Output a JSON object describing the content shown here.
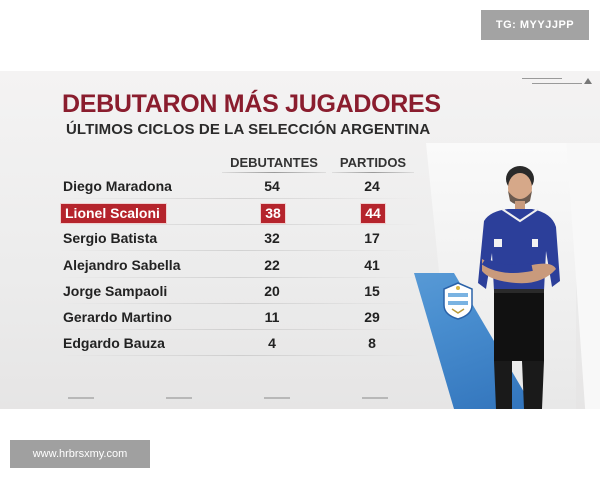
{
  "watermarks": {
    "top_right": "TG: MYYJJPP",
    "bottom_left": "www.hrbrsxmy.com"
  },
  "graphic": {
    "title": "DEBUTARON MÁS JUGADORES",
    "subtitle": "ÚLTIMOS CICLOS DE LA SELECCIÓN ARGENTINA",
    "columns": [
      "DEBUTANTES",
      "PARTIDOS"
    ],
    "highlight_color": "#b5242c",
    "title_color": "#8a1d2e",
    "rows": [
      {
        "name": "Diego Maradona",
        "debutantes": "54",
        "partidos": "24",
        "highlighted": false
      },
      {
        "name": "Lionel Scaloni",
        "debutantes": "38",
        "partidos": "44",
        "highlighted": true
      },
      {
        "name": "Sergio Batista",
        "debutantes": "32",
        "partidos": "17",
        "highlighted": false
      },
      {
        "name": "Alejandro Sabella",
        "debutantes": "22",
        "partidos": "41",
        "highlighted": false
      },
      {
        "name": "Jorge Sampaoli",
        "debutantes": "20",
        "partidos": "15",
        "highlighted": false
      },
      {
        "name": "Gerardo Martino",
        "debutantes": "11",
        "partidos": "29",
        "highlighted": false
      },
      {
        "name": "Edgardo Bauza",
        "debutantes": "4",
        "partidos": "8",
        "highlighted": false
      }
    ],
    "image_icons": [
      "coach-photo",
      "afa-crest-icon"
    ]
  }
}
